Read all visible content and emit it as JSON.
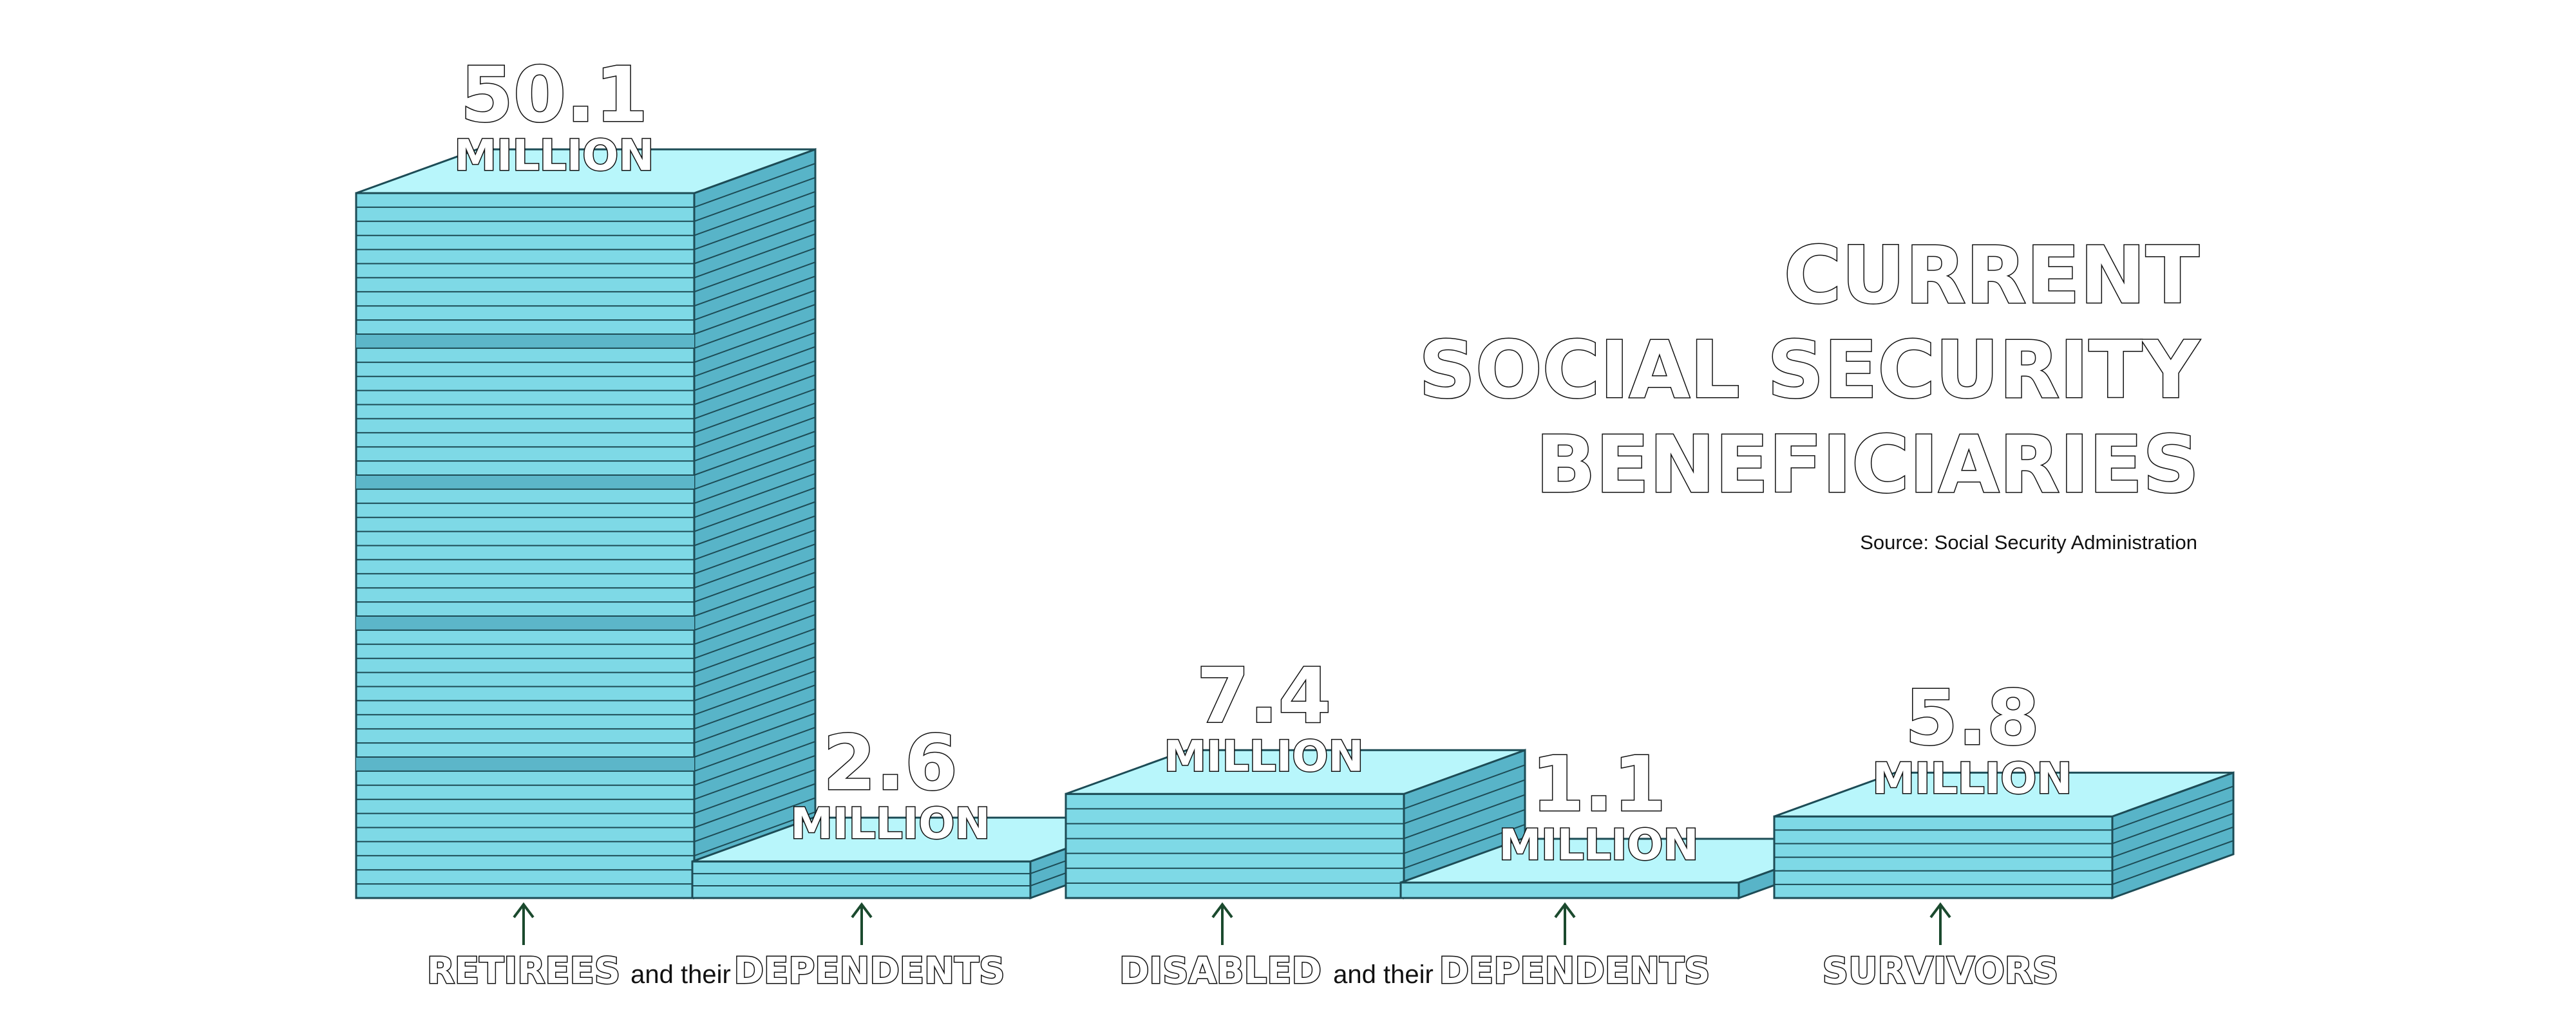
{
  "chart_data": {
    "type": "bar",
    "title_lines": [
      "CURRENT",
      "SOCIAL SECURITY",
      "BENEFICIARIES"
    ],
    "source": "Source: Social Security Administration",
    "unit_label": "MILLION",
    "series": [
      {
        "value": 50.1,
        "value_label": "50.1"
      },
      {
        "value": 2.6,
        "value_label": "2.6"
      },
      {
        "value": 7.4,
        "value_label": "7.4"
      },
      {
        "value": 1.1,
        "value_label": "1.1"
      },
      {
        "value": 5.8,
        "value_label": "5.8"
      }
    ],
    "categories": [
      {
        "label": "RETIREES",
        "connector": "and their",
        "label2": "DEPENDENTS"
      },
      {
        "label": "DISABLED",
        "connector": "and their",
        "label2": "DEPENDENTS"
      },
      {
        "label": "SURVIVORS"
      }
    ]
  },
  "colors": {
    "front": "#7ed9e6",
    "top": "#b8f6fb",
    "side": "#58b4c8",
    "band": "#5cb6c9",
    "line": "#1d4c56",
    "arrow": "#1b4a2e"
  }
}
